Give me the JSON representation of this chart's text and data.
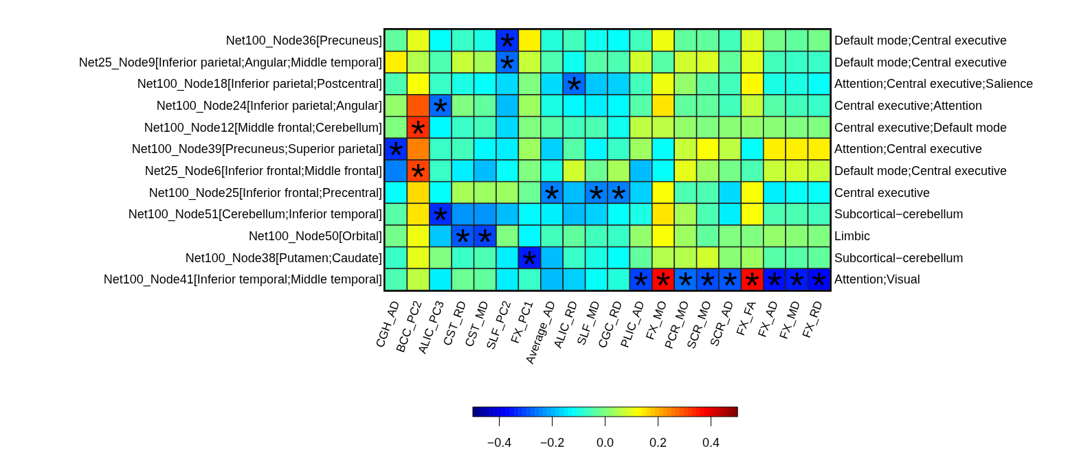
{
  "chart_data": {
    "type": "heatmap",
    "categories": [
      "CGH_AD",
      "BCC_PC2",
      "ALIC_PC3",
      "CST_RD",
      "CST_MD",
      "SLF_PC2",
      "FX_PC1",
      "Average_AD",
      "ALIC_RD",
      "SLF_MD",
      "CGC_RD",
      "PLIC_AD",
      "FX_MO",
      "PCR_MO",
      "SCR_MO",
      "SCR_AD",
      "FX_FA",
      "FX_AD",
      "FX_MD",
      "FX_RD"
    ],
    "y_categories": [
      "Net100_Node36[Precuneus]",
      "Net25_Node9[Inferior parietal;Angular;Middle temporal]",
      "Net100_Node18[Inferior parietal;Postcentral]",
      "Net100_Node24[Inferior parietal;Angular]",
      "Net100_Node12[Middle frontal;Cerebellum]",
      "Net100_Node39[Precuneus;Superior parietal]",
      "Net25_Node6[Inferior frontal;Middle frontal]",
      "Net100_Node25[Inferior frontal;Precentral]",
      "Net100_Node51[Cerebellum;Inferior temporal]",
      "Net100_Node50[Orbital]",
      "Net100_Node38[Putamen;Caudate]",
      "Net100_Node41[Inferior temporal;Middle temporal]"
    ],
    "y2_categories": [
      "Default mode;Central executive",
      "Default mode;Central executive",
      "Attention;Central executive;Salience",
      "Central executive;Attention",
      "Central executive;Default mode",
      "Attention;Central executive",
      "Default mode;Central executive",
      "Central executive",
      "Subcortical−cerebellum",
      "Limbic",
      "Subcortical−cerebellum",
      "Attention;Visual"
    ],
    "cells": [
      [
        -0.03,
        0.1,
        -0.12,
        -0.07,
        -0.1,
        -0.33,
        0.14,
        -0.09,
        -0.06,
        -0.11,
        -0.12,
        -0.06,
        0.11,
        -0.03,
        -0.03,
        -0.06,
        0.09,
        -0.01,
        -0.03,
        -0.01
      ],
      [
        0.14,
        0.05,
        -0.05,
        0.07,
        0.04,
        -0.27,
        0.07,
        -0.05,
        -0.11,
        -0.04,
        -0.05,
        0.08,
        -0.04,
        0.08,
        0.09,
        -0.03,
        0.1,
        -0.06,
        -0.07,
        -0.07
      ],
      [
        -0.05,
        0.12,
        -0.07,
        -0.1,
        -0.12,
        -0.16,
        0.0,
        -0.16,
        -0.27,
        -0.18,
        -0.17,
        -0.06,
        0.11,
        0.02,
        -0.04,
        -0.06,
        0.13,
        -0.1,
        -0.1,
        -0.12
      ],
      [
        0.02,
        0.29,
        -0.27,
        0.0,
        -0.03,
        -0.19,
        0.03,
        -0.1,
        -0.13,
        -0.14,
        -0.13,
        -0.04,
        0.15,
        -0.03,
        -0.03,
        -0.06,
        0.07,
        -0.04,
        -0.06,
        -0.07
      ],
      [
        0.0,
        0.33,
        -0.13,
        -0.07,
        -0.06,
        -0.16,
        0.0,
        -0.04,
        -0.06,
        -0.05,
        -0.11,
        0.06,
        0.06,
        0.02,
        0.0,
        0.01,
        0.02,
        0.01,
        0.0,
        0.0
      ],
      [
        -0.33,
        0.25,
        -0.07,
        -0.06,
        -0.13,
        -0.14,
        0.03,
        -0.17,
        -0.04,
        -0.13,
        -0.07,
        0.03,
        -0.12,
        0.07,
        0.12,
        0.06,
        -0.12,
        0.14,
        0.14,
        0.14
      ],
      [
        -0.25,
        0.31,
        -0.07,
        -0.14,
        -0.19,
        -0.12,
        0.0,
        -0.1,
        0.08,
        -0.02,
        0.04,
        -0.19,
        -0.12,
        0.1,
        0.03,
        -0.01,
        -0.05,
        0.07,
        0.08,
        0.07
      ],
      [
        -0.12,
        0.16,
        -0.12,
        0.04,
        0.03,
        0.03,
        -0.02,
        -0.25,
        -0.19,
        -0.25,
        -0.25,
        -0.17,
        0.12,
        -0.05,
        -0.05,
        -0.16,
        0.12,
        -0.14,
        -0.12,
        -0.12
      ],
      [
        -0.04,
        0.15,
        -0.33,
        -0.23,
        -0.23,
        -0.19,
        -0.13,
        -0.14,
        -0.19,
        -0.17,
        -0.12,
        -0.1,
        0.15,
        0.04,
        -0.05,
        -0.14,
        0.12,
        -0.05,
        -0.05,
        -0.06
      ],
      [
        -0.01,
        0.11,
        -0.18,
        -0.29,
        -0.31,
        0.0,
        -0.13,
        -0.06,
        -0.03,
        -0.06,
        -0.07,
        0.02,
        0.12,
        0.03,
        -0.03,
        0.0,
        0.0,
        0.02,
        0.01,
        0.0
      ],
      [
        -0.07,
        0.1,
        0.0,
        -0.07,
        -0.05,
        -0.14,
        -0.35,
        -0.19,
        -0.07,
        -0.1,
        -0.12,
        -0.03,
        0.05,
        0.05,
        0.08,
        0.01,
        0.03,
        -0.04,
        -0.04,
        -0.03
      ],
      [
        -0.05,
        0.06,
        -0.14,
        -0.02,
        -0.03,
        -0.14,
        -0.07,
        -0.19,
        -0.17,
        -0.12,
        -0.09,
        -0.31,
        0.37,
        -0.27,
        -0.3,
        -0.29,
        0.37,
        -0.36,
        -0.35,
        -0.37
      ]
    ],
    "cell_labels": [
      [
        null,
        null,
        null,
        null,
        null,
        "*",
        null,
        null,
        null,
        null,
        null,
        null,
        null,
        null,
        null,
        null,
        null,
        null,
        null,
        null
      ],
      [
        null,
        null,
        null,
        null,
        null,
        "*",
        null,
        null,
        null,
        null,
        null,
        null,
        null,
        null,
        null,
        null,
        null,
        null,
        null,
        null
      ],
      [
        null,
        null,
        null,
        null,
        null,
        null,
        null,
        null,
        "*",
        null,
        null,
        null,
        null,
        null,
        null,
        null,
        null,
        null,
        null,
        null
      ],
      [
        null,
        null,
        "*",
        null,
        null,
        null,
        null,
        null,
        null,
        null,
        null,
        null,
        null,
        null,
        null,
        null,
        null,
        null,
        null,
        null
      ],
      [
        null,
        "*",
        null,
        null,
        null,
        null,
        null,
        null,
        null,
        null,
        null,
        null,
        null,
        null,
        null,
        null,
        null,
        null,
        null,
        null
      ],
      [
        "*",
        null,
        null,
        null,
        null,
        null,
        null,
        null,
        null,
        null,
        null,
        null,
        null,
        null,
        null,
        null,
        null,
        null,
        null,
        null
      ],
      [
        null,
        "*",
        null,
        null,
        null,
        null,
        null,
        null,
        null,
        null,
        null,
        null,
        null,
        null,
        null,
        null,
        null,
        null,
        null,
        null
      ],
      [
        null,
        null,
        null,
        null,
        null,
        null,
        null,
        "*",
        null,
        "*",
        "*",
        null,
        null,
        null,
        null,
        null,
        null,
        null,
        null,
        null
      ],
      [
        null,
        null,
        "*",
        null,
        null,
        null,
        null,
        null,
        null,
        null,
        null,
        null,
        null,
        null,
        null,
        null,
        null,
        null,
        null,
        null
      ],
      [
        null,
        null,
        null,
        "*",
        "*",
        null,
        null,
        null,
        null,
        null,
        null,
        null,
        null,
        null,
        null,
        null,
        null,
        null,
        null,
        null
      ],
      [
        null,
        null,
        null,
        null,
        null,
        null,
        "*",
        null,
        null,
        null,
        null,
        null,
        null,
        null,
        null,
        null,
        null,
        null,
        null,
        null
      ],
      [
        null,
        null,
        null,
        null,
        null,
        null,
        null,
        null,
        null,
        null,
        null,
        "*",
        "*",
        "*",
        "*",
        "*",
        "*",
        "*",
        "*",
        "*"
      ]
    ],
    "clim": [
      -0.5,
      0.5
    ],
    "cticks": [
      {
        "value": -0.4,
        "label": "−0.4"
      },
      {
        "value": -0.2,
        "label": "−0.2"
      },
      {
        "value": 0,
        "label": "0.0"
      },
      {
        "value": 0.2,
        "label": "0.2"
      },
      {
        "value": 0.4,
        "label": "0.4"
      }
    ]
  }
}
